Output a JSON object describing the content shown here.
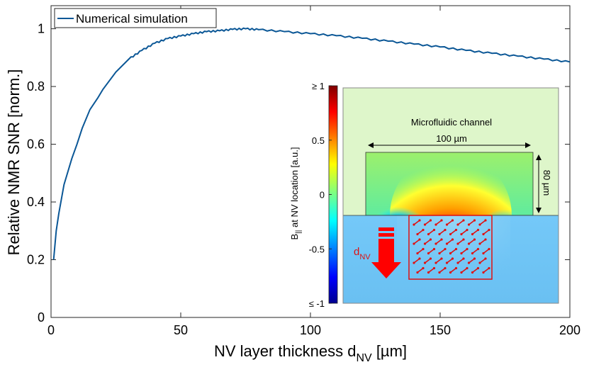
{
  "chart_data": {
    "type": "line",
    "xlabel": "NV layer thickness d",
    "xlabel_sub": "NV",
    "xlabel_unit": " [µm]",
    "ylabel": "Relative NMR SNR [norm.]",
    "xlim": [
      0,
      200
    ],
    "ylim": [
      0,
      1.08
    ],
    "xticks": [
      0,
      50,
      100,
      150,
      200
    ],
    "yticks": [
      0,
      0.2,
      0.4,
      0.6,
      0.8,
      1
    ],
    "ytick_labels": [
      "0",
      "0.2",
      "0.4",
      "0.6",
      "0.8",
      "1"
    ],
    "legend": "Numerical simulation",
    "legend_location": "top-left",
    "series": [
      {
        "name": "Numerical simulation",
        "color": "#0b5796",
        "x": [
          1,
          2,
          3,
          4,
          5,
          6,
          8,
          10,
          12,
          15,
          18,
          20,
          25,
          30,
          35,
          40,
          45,
          50,
          55,
          60,
          65,
          70,
          75,
          80,
          90,
          100,
          110,
          120,
          130,
          140,
          150,
          160,
          170,
          180,
          190,
          200
        ],
        "y": [
          0.2,
          0.3,
          0.36,
          0.41,
          0.46,
          0.49,
          0.55,
          0.6,
          0.655,
          0.72,
          0.76,
          0.79,
          0.85,
          0.895,
          0.925,
          0.95,
          0.966,
          0.975,
          0.983,
          0.99,
          0.993,
          0.998,
          1.0,
          0.997,
          0.99,
          0.983,
          0.976,
          0.967,
          0.957,
          0.947,
          0.937,
          0.925,
          0.915,
          0.905,
          0.895,
          0.885
        ]
      }
    ]
  },
  "inset": {
    "channel_label": "Microfluidic channel",
    "width_label": "100 µm",
    "height_label": "80 µm",
    "nv_label": "d",
    "nv_label_sub": "NV",
    "colorbar": {
      "label": "B",
      "label_sub": "||",
      "label_rest": " at NV location [a.u.]",
      "ticks": [
        1,
        0.5,
        0,
        -0.5,
        -1
      ],
      "tick_labels": [
        "≥ 1",
        "0.5",
        "0",
        "-0.5",
        "≤ -1"
      ],
      "colors": [
        "#800000",
        "#ff0000",
        "#ffff00",
        "#00ffff",
        "#0000ff",
        "#000080"
      ]
    }
  }
}
